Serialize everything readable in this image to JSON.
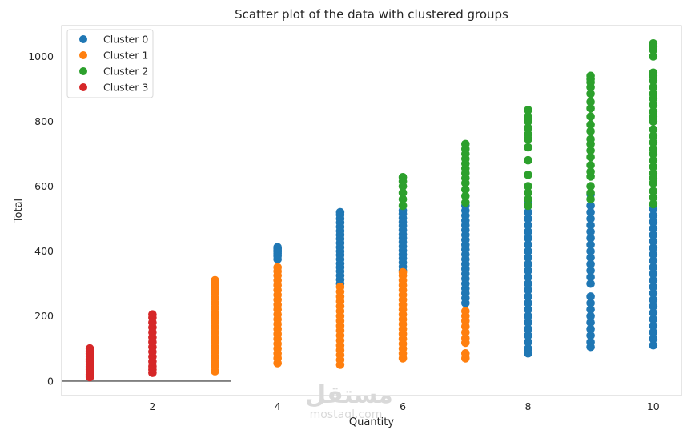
{
  "chart_data": {
    "type": "scatter",
    "title": "Scatter plot of the data with clustered groups",
    "xlabel": "Quantity",
    "ylabel": "Total",
    "xlim": [
      0.55,
      10.45
    ],
    "ylim": [
      -45,
      1095
    ],
    "xticks": [
      2,
      4,
      6,
      8,
      10
    ],
    "yticks": [
      0,
      200,
      400,
      600,
      800,
      1000
    ],
    "grid": false,
    "legend_position": "top-left",
    "series": [
      {
        "name": "Cluster 0",
        "color": "#1f77b4",
        "points": [
          [
            4,
            375
          ],
          [
            4,
            385
          ],
          [
            4,
            392
          ],
          [
            4,
            398
          ],
          [
            4,
            403
          ],
          [
            4,
            408
          ],
          [
            4,
            412
          ],
          [
            5,
            300
          ],
          [
            5,
            312
          ],
          [
            5,
            325
          ],
          [
            5,
            338
          ],
          [
            5,
            350
          ],
          [
            5,
            362
          ],
          [
            5,
            375
          ],
          [
            5,
            388
          ],
          [
            5,
            400
          ],
          [
            5,
            412
          ],
          [
            5,
            425
          ],
          [
            5,
            438
          ],
          [
            5,
            450
          ],
          [
            5,
            462
          ],
          [
            5,
            475
          ],
          [
            5,
            488
          ],
          [
            5,
            500
          ],
          [
            5,
            512
          ],
          [
            5,
            520
          ],
          [
            6,
            340
          ],
          [
            6,
            352
          ],
          [
            6,
            365
          ],
          [
            6,
            378
          ],
          [
            6,
            390
          ],
          [
            6,
            402
          ],
          [
            6,
            415
          ],
          [
            6,
            428
          ],
          [
            6,
            440
          ],
          [
            6,
            452
          ],
          [
            6,
            465
          ],
          [
            6,
            478
          ],
          [
            6,
            490
          ],
          [
            6,
            502
          ],
          [
            6,
            515
          ],
          [
            6,
            525
          ],
          [
            7,
            240
          ],
          [
            7,
            255
          ],
          [
            7,
            270
          ],
          [
            7,
            285
          ],
          [
            7,
            300
          ],
          [
            7,
            315
          ],
          [
            7,
            330
          ],
          [
            7,
            345
          ],
          [
            7,
            360
          ],
          [
            7,
            375
          ],
          [
            7,
            390
          ],
          [
            7,
            405
          ],
          [
            7,
            420
          ],
          [
            7,
            435
          ],
          [
            7,
            450
          ],
          [
            7,
            465
          ],
          [
            7,
            480
          ],
          [
            7,
            495
          ],
          [
            7,
            510
          ],
          [
            7,
            525
          ],
          [
            7,
            540
          ],
          [
            8,
            85
          ],
          [
            8,
            100
          ],
          [
            8,
            120
          ],
          [
            8,
            140
          ],
          [
            8,
            160
          ],
          [
            8,
            180
          ],
          [
            8,
            200
          ],
          [
            8,
            220
          ],
          [
            8,
            240
          ],
          [
            8,
            260
          ],
          [
            8,
            280
          ],
          [
            8,
            300
          ],
          [
            8,
            320
          ],
          [
            8,
            340
          ],
          [
            8,
            360
          ],
          [
            8,
            380
          ],
          [
            8,
            400
          ],
          [
            8,
            420
          ],
          [
            8,
            440
          ],
          [
            8,
            460
          ],
          [
            8,
            480
          ],
          [
            8,
            500
          ],
          [
            8,
            520
          ],
          [
            8,
            540
          ],
          [
            8,
            555
          ],
          [
            9,
            105
          ],
          [
            9,
            120
          ],
          [
            9,
            140
          ],
          [
            9,
            160
          ],
          [
            9,
            180
          ],
          [
            9,
            200
          ],
          [
            9,
            220
          ],
          [
            9,
            240
          ],
          [
            9,
            260
          ],
          [
            9,
            300
          ],
          [
            9,
            320
          ],
          [
            9,
            340
          ],
          [
            9,
            360
          ],
          [
            9,
            380
          ],
          [
            9,
            400
          ],
          [
            9,
            420
          ],
          [
            9,
            440
          ],
          [
            9,
            460
          ],
          [
            9,
            480
          ],
          [
            9,
            500
          ],
          [
            9,
            520
          ],
          [
            9,
            540
          ],
          [
            9,
            575
          ],
          [
            10,
            110
          ],
          [
            10,
            130
          ],
          [
            10,
            150
          ],
          [
            10,
            170
          ],
          [
            10,
            190
          ],
          [
            10,
            210
          ],
          [
            10,
            230
          ],
          [
            10,
            250
          ],
          [
            10,
            270
          ],
          [
            10,
            290
          ],
          [
            10,
            310
          ],
          [
            10,
            330
          ],
          [
            10,
            350
          ],
          [
            10,
            370
          ],
          [
            10,
            390
          ],
          [
            10,
            410
          ],
          [
            10,
            430
          ],
          [
            10,
            450
          ],
          [
            10,
            470
          ],
          [
            10,
            490
          ],
          [
            10,
            510
          ],
          [
            10,
            530
          ]
        ]
      },
      {
        "name": "Cluster 1",
        "color": "#ff7f0e",
        "points": [
          [
            3,
            30
          ],
          [
            3,
            45
          ],
          [
            3,
            60
          ],
          [
            3,
            75
          ],
          [
            3,
            90
          ],
          [
            3,
            105
          ],
          [
            3,
            120
          ],
          [
            3,
            135
          ],
          [
            3,
            150
          ],
          [
            3,
            165
          ],
          [
            3,
            180
          ],
          [
            3,
            195
          ],
          [
            3,
            210
          ],
          [
            3,
            225
          ],
          [
            3,
            240
          ],
          [
            3,
            255
          ],
          [
            3,
            270
          ],
          [
            3,
            285
          ],
          [
            3,
            298
          ],
          [
            3,
            310
          ],
          [
            4,
            55
          ],
          [
            4,
            70
          ],
          [
            4,
            85
          ],
          [
            4,
            100
          ],
          [
            4,
            115
          ],
          [
            4,
            130
          ],
          [
            4,
            145
          ],
          [
            4,
            160
          ],
          [
            4,
            175
          ],
          [
            4,
            190
          ],
          [
            4,
            205
          ],
          [
            4,
            220
          ],
          [
            4,
            235
          ],
          [
            4,
            250
          ],
          [
            4,
            265
          ],
          [
            4,
            280
          ],
          [
            4,
            295
          ],
          [
            4,
            310
          ],
          [
            4,
            325
          ],
          [
            4,
            338
          ],
          [
            4,
            350
          ],
          [
            5,
            50
          ],
          [
            5,
            65
          ],
          [
            5,
            80
          ],
          [
            5,
            95
          ],
          [
            5,
            110
          ],
          [
            5,
            125
          ],
          [
            5,
            140
          ],
          [
            5,
            155
          ],
          [
            5,
            170
          ],
          [
            5,
            185
          ],
          [
            5,
            200
          ],
          [
            5,
            215
          ],
          [
            5,
            230
          ],
          [
            5,
            245
          ],
          [
            5,
            260
          ],
          [
            5,
            275
          ],
          [
            5,
            290
          ],
          [
            6,
            70
          ],
          [
            6,
            85
          ],
          [
            6,
            100
          ],
          [
            6,
            115
          ],
          [
            6,
            130
          ],
          [
            6,
            145
          ],
          [
            6,
            160
          ],
          [
            6,
            175
          ],
          [
            6,
            190
          ],
          [
            6,
            205
          ],
          [
            6,
            220
          ],
          [
            6,
            235
          ],
          [
            6,
            250
          ],
          [
            6,
            265
          ],
          [
            6,
            280
          ],
          [
            6,
            295
          ],
          [
            6,
            310
          ],
          [
            6,
            325
          ],
          [
            6,
            335
          ],
          [
            7,
            70
          ],
          [
            7,
            85
          ],
          [
            7,
            118
          ],
          [
            7,
            132
          ],
          [
            7,
            150
          ],
          [
            7,
            168
          ],
          [
            7,
            185
          ],
          [
            7,
            200
          ],
          [
            7,
            215
          ]
        ]
      },
      {
        "name": "Cluster 2",
        "color": "#2ca02c",
        "points": [
          [
            6,
            540
          ],
          [
            6,
            560
          ],
          [
            6,
            580
          ],
          [
            6,
            600
          ],
          [
            6,
            615
          ],
          [
            6,
            628
          ],
          [
            7,
            550
          ],
          [
            7,
            570
          ],
          [
            7,
            590
          ],
          [
            7,
            610
          ],
          [
            7,
            625
          ],
          [
            7,
            640
          ],
          [
            7,
            655
          ],
          [
            7,
            670
          ],
          [
            7,
            685
          ],
          [
            7,
            700
          ],
          [
            7,
            715
          ],
          [
            7,
            730
          ],
          [
            8,
            540
          ],
          [
            8,
            560
          ],
          [
            8,
            580
          ],
          [
            8,
            600
          ],
          [
            8,
            635
          ],
          [
            8,
            680
          ],
          [
            8,
            720
          ],
          [
            8,
            745
          ],
          [
            8,
            760
          ],
          [
            8,
            780
          ],
          [
            8,
            800
          ],
          [
            8,
            815
          ],
          [
            8,
            835
          ],
          [
            9,
            560
          ],
          [
            9,
            580
          ],
          [
            9,
            600
          ],
          [
            9,
            630
          ],
          [
            9,
            645
          ],
          [
            9,
            665
          ],
          [
            9,
            690
          ],
          [
            9,
            710
          ],
          [
            9,
            730
          ],
          [
            9,
            745
          ],
          [
            9,
            770
          ],
          [
            9,
            790
          ],
          [
            9,
            815
          ],
          [
            9,
            840
          ],
          [
            9,
            860
          ],
          [
            9,
            885
          ],
          [
            9,
            905
          ],
          [
            9,
            920
          ],
          [
            9,
            930
          ],
          [
            9,
            940
          ],
          [
            10,
            545
          ],
          [
            10,
            565
          ],
          [
            10,
            585
          ],
          [
            10,
            610
          ],
          [
            10,
            625
          ],
          [
            10,
            640
          ],
          [
            10,
            660
          ],
          [
            10,
            680
          ],
          [
            10,
            700
          ],
          [
            10,
            715
          ],
          [
            10,
            735
          ],
          [
            10,
            755
          ],
          [
            10,
            775
          ],
          [
            10,
            800
          ],
          [
            10,
            815
          ],
          [
            10,
            830
          ],
          [
            10,
            850
          ],
          [
            10,
            870
          ],
          [
            10,
            885
          ],
          [
            10,
            905
          ],
          [
            10,
            925
          ],
          [
            10,
            940
          ],
          [
            10,
            950
          ],
          [
            10,
            1000
          ],
          [
            10,
            1020
          ],
          [
            10,
            1030
          ],
          [
            10,
            1040
          ]
        ]
      },
      {
        "name": "Cluster 3",
        "color": "#d62728",
        "points": [
          [
            1,
            12
          ],
          [
            1,
            20
          ],
          [
            1,
            28
          ],
          [
            1,
            36
          ],
          [
            1,
            44
          ],
          [
            1,
            52
          ],
          [
            1,
            60
          ],
          [
            1,
            68
          ],
          [
            1,
            76
          ],
          [
            1,
            84
          ],
          [
            1,
            92
          ],
          [
            1,
            100
          ],
          [
            2,
            25
          ],
          [
            2,
            35
          ],
          [
            2,
            45
          ],
          [
            2,
            60
          ],
          [
            2,
            75
          ],
          [
            2,
            90
          ],
          [
            2,
            105
          ],
          [
            2,
            120
          ],
          [
            2,
            135
          ],
          [
            2,
            150
          ],
          [
            2,
            165
          ],
          [
            2,
            180
          ],
          [
            2,
            195
          ],
          [
            2,
            205
          ]
        ]
      }
    ],
    "baseline_segment": {
      "x": [
        0.55,
        3.25
      ],
      "y": 0,
      "color": "#808080"
    }
  },
  "watermark": {
    "arabic": "مستقل",
    "latin": "mostaql.com"
  }
}
